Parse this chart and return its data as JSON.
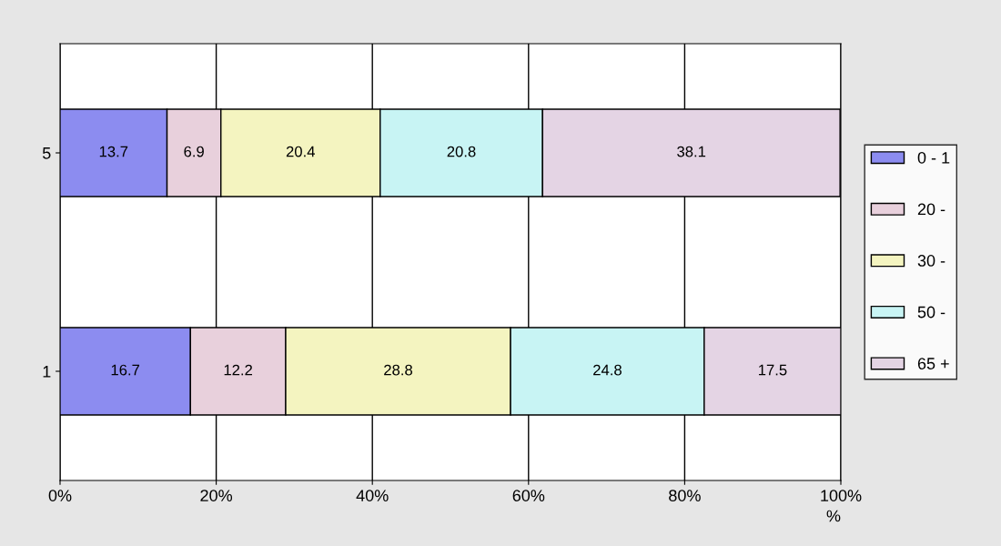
{
  "chart_data": {
    "type": "bar",
    "orientation": "horizontal",
    "stacked": true,
    "data_labels": true,
    "categories": [
      "5",
      "1"
    ],
    "series": [
      {
        "name": "0 - 1",
        "color": "#8c8cf0",
        "values": [
          13.7,
          16.7
        ]
      },
      {
        "name": "20 -",
        "color": "#e8d0dc",
        "values": [
          6.9,
          12.2
        ]
      },
      {
        "name": "30 -",
        "color": "#f4f4c0",
        "values": [
          20.4,
          28.8
        ]
      },
      {
        "name": "50 -",
        "color": "#c8f4f4",
        "values": [
          20.8,
          24.8
        ]
      },
      {
        "name": "65 +",
        "color": "#e4d4e4",
        "values": [
          38.1,
          17.5
        ]
      }
    ],
    "xlabel": "%",
    "xlim": [
      0,
      100
    ],
    "xticks": [
      {
        "value": 0,
        "label": "0%"
      },
      {
        "value": 20,
        "label": "20%"
      },
      {
        "value": 40,
        "label": "40%"
      },
      {
        "value": 60,
        "label": "60%"
      },
      {
        "value": 80,
        "label": "80%"
      },
      {
        "value": 100,
        "label": "100%"
      }
    ],
    "grid": "x",
    "legend": "right"
  }
}
